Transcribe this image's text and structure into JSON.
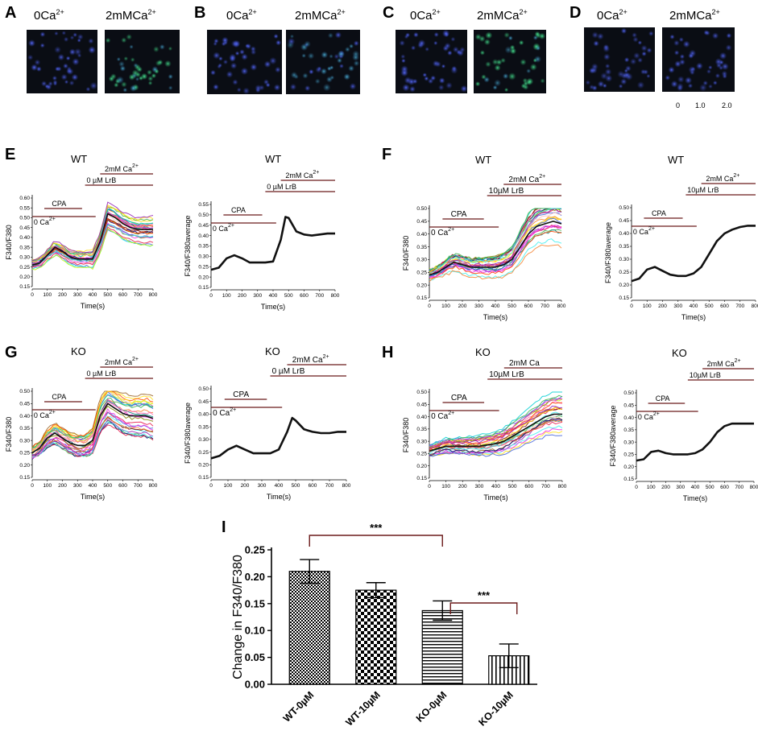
{
  "figure": {
    "micrographs": [
      {
        "label": "A",
        "left": "0Ca",
        "right": "2mMCa",
        "sup": "2+"
      },
      {
        "label": "B",
        "left": "0Ca",
        "right": "2mMCa",
        "sup": "2+"
      },
      {
        "label": "C",
        "left": "0Ca",
        "right": "2mMCa",
        "sup": "2+"
      },
      {
        "label": "D",
        "left": "0Ca",
        "right": "2mMCa",
        "sup": "2+"
      }
    ],
    "scale_labels": [
      "0",
      "1.0",
      "2.0"
    ]
  },
  "colors": {
    "condition_bar": "#6b1a1a",
    "trace": "#111111",
    "cell_blue": "#2e3fb0",
    "cell_green": "#2fb86e",
    "image_bg": "#0a0d14"
  },
  "chart_data": [
    {
      "panel": "E",
      "id": "E-all",
      "type": "line",
      "title": "WT",
      "xlabel": "Time(s)",
      "ylabel": "F340/F380",
      "ylim": [
        0.15,
        0.6
      ],
      "yticks": [
        "0.15",
        "0.20",
        "0.25",
        "0.30",
        "0.35",
        "0.40",
        "0.45",
        "0.50",
        "0.55",
        "0.60"
      ],
      "xlim": [
        0,
        800
      ],
      "xticks": [
        "0",
        "100",
        "200",
        "300",
        "400",
        "500",
        "600",
        "700",
        "800"
      ],
      "conditions": [
        {
          "text": "2mM Ca",
          "sup": "2+"
        },
        {
          "text": "0 µM LrB",
          "sup": ""
        },
        {
          "text": "CPA",
          "sup": ""
        },
        {
          "text": "0 Ca",
          "sup": "2+"
        }
      ],
      "series": [
        {
          "name": "average",
          "x": [
            0,
            50,
            100,
            150,
            200,
            250,
            300,
            350,
            400,
            450,
            500,
            550,
            600,
            650,
            700,
            750,
            800
          ],
          "y": [
            0.26,
            0.27,
            0.31,
            0.35,
            0.33,
            0.3,
            0.29,
            0.29,
            0.29,
            0.38,
            0.52,
            0.5,
            0.47,
            0.45,
            0.44,
            0.44,
            0.44
          ]
        }
      ]
    },
    {
      "panel": "E",
      "id": "E-avg",
      "type": "line",
      "title": "WT",
      "xlabel": "Time(s)",
      "ylabel": "F340/F380average",
      "ylim": [
        0.15,
        0.55
      ],
      "yticks": [
        "0.15",
        "0.20",
        "0.25",
        "0.30",
        "0.35",
        "0.40",
        "0.45",
        "0.50",
        "0.55"
      ],
      "xlim": [
        0,
        800
      ],
      "xticks": [
        "0",
        "100",
        "200",
        "300",
        "400",
        "500",
        "600",
        "700",
        "800"
      ],
      "conditions": [
        {
          "text": "2mM Ca",
          "sup": "2+"
        },
        {
          "text": "0 µM LrB",
          "sup": ""
        },
        {
          "text": "CPA",
          "sup": ""
        },
        {
          "text": "0 Ca",
          "sup": "2+"
        }
      ],
      "series": [
        {
          "name": "average",
          "x": [
            0,
            50,
            100,
            150,
            200,
            250,
            300,
            350,
            400,
            450,
            480,
            500,
            550,
            600,
            650,
            700,
            750,
            800
          ],
          "y": [
            0.235,
            0.245,
            0.29,
            0.305,
            0.29,
            0.27,
            0.27,
            0.27,
            0.275,
            0.38,
            0.49,
            0.485,
            0.42,
            0.405,
            0.4,
            0.405,
            0.41,
            0.41
          ]
        }
      ]
    },
    {
      "panel": "F",
      "id": "F-all",
      "type": "line",
      "title": "WT",
      "xlabel": "Time(s)",
      "ylabel": "F340/F380",
      "ylim": [
        0.15,
        0.5
      ],
      "yticks": [
        "0.15",
        "0.20",
        "0.25",
        "0.30",
        "0.35",
        "0.40",
        "0.45",
        "0.50"
      ],
      "xlim": [
        0,
        800
      ],
      "xticks": [
        "0",
        "100",
        "200",
        "300",
        "400",
        "500",
        "600",
        "700",
        "800"
      ],
      "conditions": [
        {
          "text": "2mM Ca",
          "sup": "2+"
        },
        {
          "text": "10µM LrB",
          "sup": ""
        },
        {
          "text": "CPA",
          "sup": ""
        },
        {
          "text": "0 Ca",
          "sup": "2+"
        }
      ],
      "series": [
        {
          "name": "average",
          "x": [
            0,
            50,
            100,
            150,
            200,
            250,
            300,
            350,
            400,
            450,
            500,
            550,
            600,
            650,
            700,
            750,
            800
          ],
          "y": [
            0.24,
            0.25,
            0.27,
            0.29,
            0.28,
            0.27,
            0.27,
            0.27,
            0.27,
            0.28,
            0.3,
            0.35,
            0.4,
            0.43,
            0.44,
            0.45,
            0.44
          ]
        }
      ]
    },
    {
      "panel": "F",
      "id": "F-avg",
      "type": "line",
      "title": "WT",
      "xlabel": "Time(s)",
      "ylabel": "F340/F380average",
      "ylim": [
        0.15,
        0.5
      ],
      "yticks": [
        "0.15",
        "0.20",
        "0.25",
        "0.30",
        "0.35",
        "0.40",
        "0.45",
        "0.50"
      ],
      "xlim": [
        0,
        800
      ],
      "xticks": [
        "0",
        "100",
        "200",
        "300",
        "400",
        "500",
        "600",
        "700",
        "800"
      ],
      "conditions": [
        {
          "text": "2mM Ca",
          "sup": "2+"
        },
        {
          "text": "10µM LrB",
          "sup": ""
        },
        {
          "text": "CPA",
          "sup": ""
        },
        {
          "text": "0 Ca",
          "sup": "2+"
        }
      ],
      "series": [
        {
          "name": "average",
          "x": [
            0,
            50,
            100,
            150,
            200,
            250,
            300,
            350,
            400,
            450,
            500,
            550,
            600,
            650,
            700,
            750,
            800
          ],
          "y": [
            0.215,
            0.225,
            0.26,
            0.27,
            0.255,
            0.24,
            0.235,
            0.235,
            0.245,
            0.27,
            0.32,
            0.37,
            0.4,
            0.415,
            0.425,
            0.43,
            0.43
          ]
        }
      ]
    },
    {
      "panel": "G",
      "id": "G-all",
      "type": "line",
      "title": "KO",
      "xlabel": "Time(s)",
      "ylabel": "F340/F380",
      "ylim": [
        0.15,
        0.5
      ],
      "yticks": [
        "0.15",
        "0.20",
        "0.25",
        "0.30",
        "0.35",
        "0.40",
        "0.45",
        "0.50"
      ],
      "xlim": [
        0,
        800
      ],
      "xticks": [
        "0",
        "100",
        "200",
        "300",
        "400",
        "500",
        "600",
        "700",
        "800"
      ],
      "conditions": [
        {
          "text": "2mM Ca",
          "sup": "2+"
        },
        {
          "text": "0 µM LrB",
          "sup": ""
        },
        {
          "text": "CPA",
          "sup": ""
        },
        {
          "text": "0 Ca",
          "sup": "2+"
        }
      ],
      "series": [
        {
          "name": "average",
          "x": [
            0,
            50,
            100,
            150,
            200,
            250,
            300,
            350,
            400,
            450,
            500,
            550,
            600,
            650,
            700,
            750,
            800
          ],
          "y": [
            0.25,
            0.27,
            0.31,
            0.33,
            0.31,
            0.29,
            0.28,
            0.28,
            0.3,
            0.4,
            0.45,
            0.43,
            0.41,
            0.4,
            0.4,
            0.4,
            0.39
          ]
        }
      ]
    },
    {
      "panel": "G",
      "id": "G-avg",
      "type": "line",
      "title": "KO",
      "xlabel": "Time(s)",
      "ylabel": "F340/F380average",
      "ylim": [
        0.15,
        0.5
      ],
      "yticks": [
        "0.15",
        "0.20",
        "0.25",
        "0.30",
        "0.35",
        "0.40",
        "0.45",
        "0.50"
      ],
      "xlim": [
        0,
        800
      ],
      "xticks": [
        "0",
        "100",
        "200",
        "300",
        "400",
        "500",
        "600",
        "700",
        "800"
      ],
      "conditions": [
        {
          "text": "2mM Ca",
          "sup": "2+"
        },
        {
          "text": "0 µM LrB",
          "sup": ""
        },
        {
          "text": "CPA",
          "sup": ""
        },
        {
          "text": "0 Ca",
          "sup": "2+"
        }
      ],
      "series": [
        {
          "name": "average",
          "x": [
            0,
            50,
            100,
            150,
            200,
            250,
            300,
            350,
            400,
            450,
            480,
            500,
            550,
            600,
            650,
            700,
            750,
            800
          ],
          "y": [
            0.225,
            0.235,
            0.26,
            0.275,
            0.26,
            0.245,
            0.245,
            0.245,
            0.26,
            0.33,
            0.385,
            0.375,
            0.34,
            0.33,
            0.325,
            0.325,
            0.33,
            0.33
          ]
        }
      ]
    },
    {
      "panel": "H",
      "id": "H-all",
      "type": "line",
      "title": "KO",
      "xlabel": "Time(s)",
      "ylabel": "F340/F380",
      "ylim": [
        0.15,
        0.5
      ],
      "yticks": [
        "0.15",
        "0.20",
        "0.25",
        "0.30",
        "0.35",
        "0.40",
        "0.45",
        "0.50"
      ],
      "xlim": [
        0,
        800
      ],
      "xticks": [
        "0",
        "100",
        "200",
        "300",
        "400",
        "500",
        "600",
        "700",
        "800"
      ],
      "conditions": [
        {
          "text": "2mM Ca",
          "sup": ""
        },
        {
          "text": "10µM LrB",
          "sup": ""
        },
        {
          "text": "CPA",
          "sup": ""
        },
        {
          "text": "0 Ca",
          "sup": "2+"
        }
      ],
      "series": [
        {
          "name": "average",
          "x": [
            0,
            50,
            100,
            150,
            200,
            250,
            300,
            350,
            400,
            450,
            500,
            550,
            600,
            650,
            700,
            750,
            800
          ],
          "y": [
            0.26,
            0.27,
            0.28,
            0.28,
            0.28,
            0.28,
            0.28,
            0.285,
            0.29,
            0.3,
            0.32,
            0.34,
            0.36,
            0.38,
            0.4,
            0.41,
            0.41
          ]
        }
      ]
    },
    {
      "panel": "H",
      "id": "H-avg",
      "type": "line",
      "title": "KO",
      "xlabel": "Time(s)",
      "ylabel": "F340/F380average",
      "ylim": [
        0.15,
        0.5
      ],
      "yticks": [
        "0.15",
        "0.20",
        "0.25",
        "0.30",
        "0.35",
        "0.40",
        "0.45",
        "0.50"
      ],
      "xlim": [
        0,
        800
      ],
      "xticks": [
        "0",
        "100",
        "200",
        "300",
        "400",
        "500",
        "600",
        "700",
        "800"
      ],
      "conditions": [
        {
          "text": "2mM Ca",
          "sup": "2+"
        },
        {
          "text": "10µM LrB",
          "sup": ""
        },
        {
          "text": "CPA",
          "sup": ""
        },
        {
          "text": "0 Ca",
          "sup": "2+"
        }
      ],
      "series": [
        {
          "name": "average",
          "x": [
            0,
            50,
            100,
            150,
            200,
            250,
            300,
            350,
            400,
            450,
            500,
            550,
            600,
            650,
            700,
            750,
            800
          ],
          "y": [
            0.225,
            0.23,
            0.26,
            0.265,
            0.255,
            0.25,
            0.25,
            0.25,
            0.255,
            0.27,
            0.3,
            0.34,
            0.365,
            0.375,
            0.375,
            0.375,
            0.375
          ]
        }
      ]
    },
    {
      "panel": "I",
      "id": "I-bar",
      "type": "bar",
      "title": "",
      "xlabel": "",
      "ylabel": "Change in F340/F380",
      "ylim": [
        0,
        0.25
      ],
      "yticks": [
        "0.00",
        "0.05",
        "0.10",
        "0.15",
        "0.20",
        "0.25"
      ],
      "categories": [
        "WT-0µM",
        "WT-10µM",
        "KO-0µM",
        "KO-10µM"
      ],
      "values": [
        0.21,
        0.175,
        0.137,
        0.053
      ],
      "errors": [
        0.022,
        0.014,
        0.018,
        0.022
      ],
      "significance": [
        {
          "pair": [
            "WT-0µM",
            "KO-0µM"
          ],
          "label": "***"
        },
        {
          "pair": [
            "KO-0µM",
            "KO-10µM"
          ],
          "label": "***"
        }
      ]
    }
  ]
}
